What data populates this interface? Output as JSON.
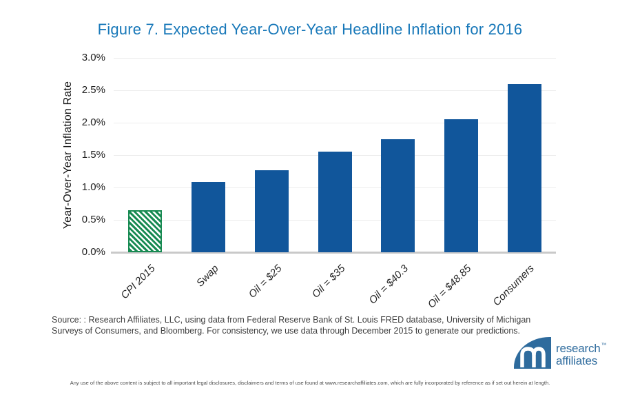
{
  "title": "Figure 7. Expected Year-Over-Year Headline Inflation for 2016",
  "chart_data": {
    "type": "bar",
    "categories": [
      "CPI 2015",
      "Swap",
      "Oil = $25",
      "Oil = $35",
      "Oil = $40.3",
      "Oil = $48.85",
      "Consumers"
    ],
    "values": [
      0.65,
      1.08,
      1.27,
      1.55,
      1.75,
      2.05,
      2.6
    ],
    "title": "Figure 7. Expected Year-Over-Year Headline Inflation for 2016",
    "xlabel": "",
    "ylabel": "Year-Over-Year Inflation Rate",
    "ylim": [
      0,
      3.0
    ],
    "ytick_labels": [
      "3.0%",
      "2.5%",
      "2.0%",
      "1.5%",
      "1.0%",
      "0.5%",
      "0.0%"
    ],
    "grid": true,
    "legend": "none",
    "bar_color": "#11569B",
    "highlight_category": "CPI 2015",
    "highlight_style": "green diagonal hatch",
    "highlight_color": "#178A52"
  },
  "source_note": "Source: : Research Affiliates, LLC, using data from Federal Reserve Bank of St. Louis FRED database, University of Michigan Surveys of Consumers, and Bloomberg. For consistency, we use data through December 2015 to generate our predictions.",
  "logo": {
    "line1": "research",
    "line2": "affiliates",
    "trademark": "™"
  },
  "disclaimer": "Any use of the above content is subject to all important legal disclosures, disclaimers and terms of use found at www.researchaffiliates.com, which are fully incorporated by reference as if set out herein at length.",
  "colors": {
    "title_blue": "#1878B9",
    "bar_blue": "#11569B",
    "hatch_green": "#178A52",
    "logo_blue": "#2E6B9D",
    "gridline": "#ECECEC",
    "axis_line": "#C9C9C9"
  }
}
